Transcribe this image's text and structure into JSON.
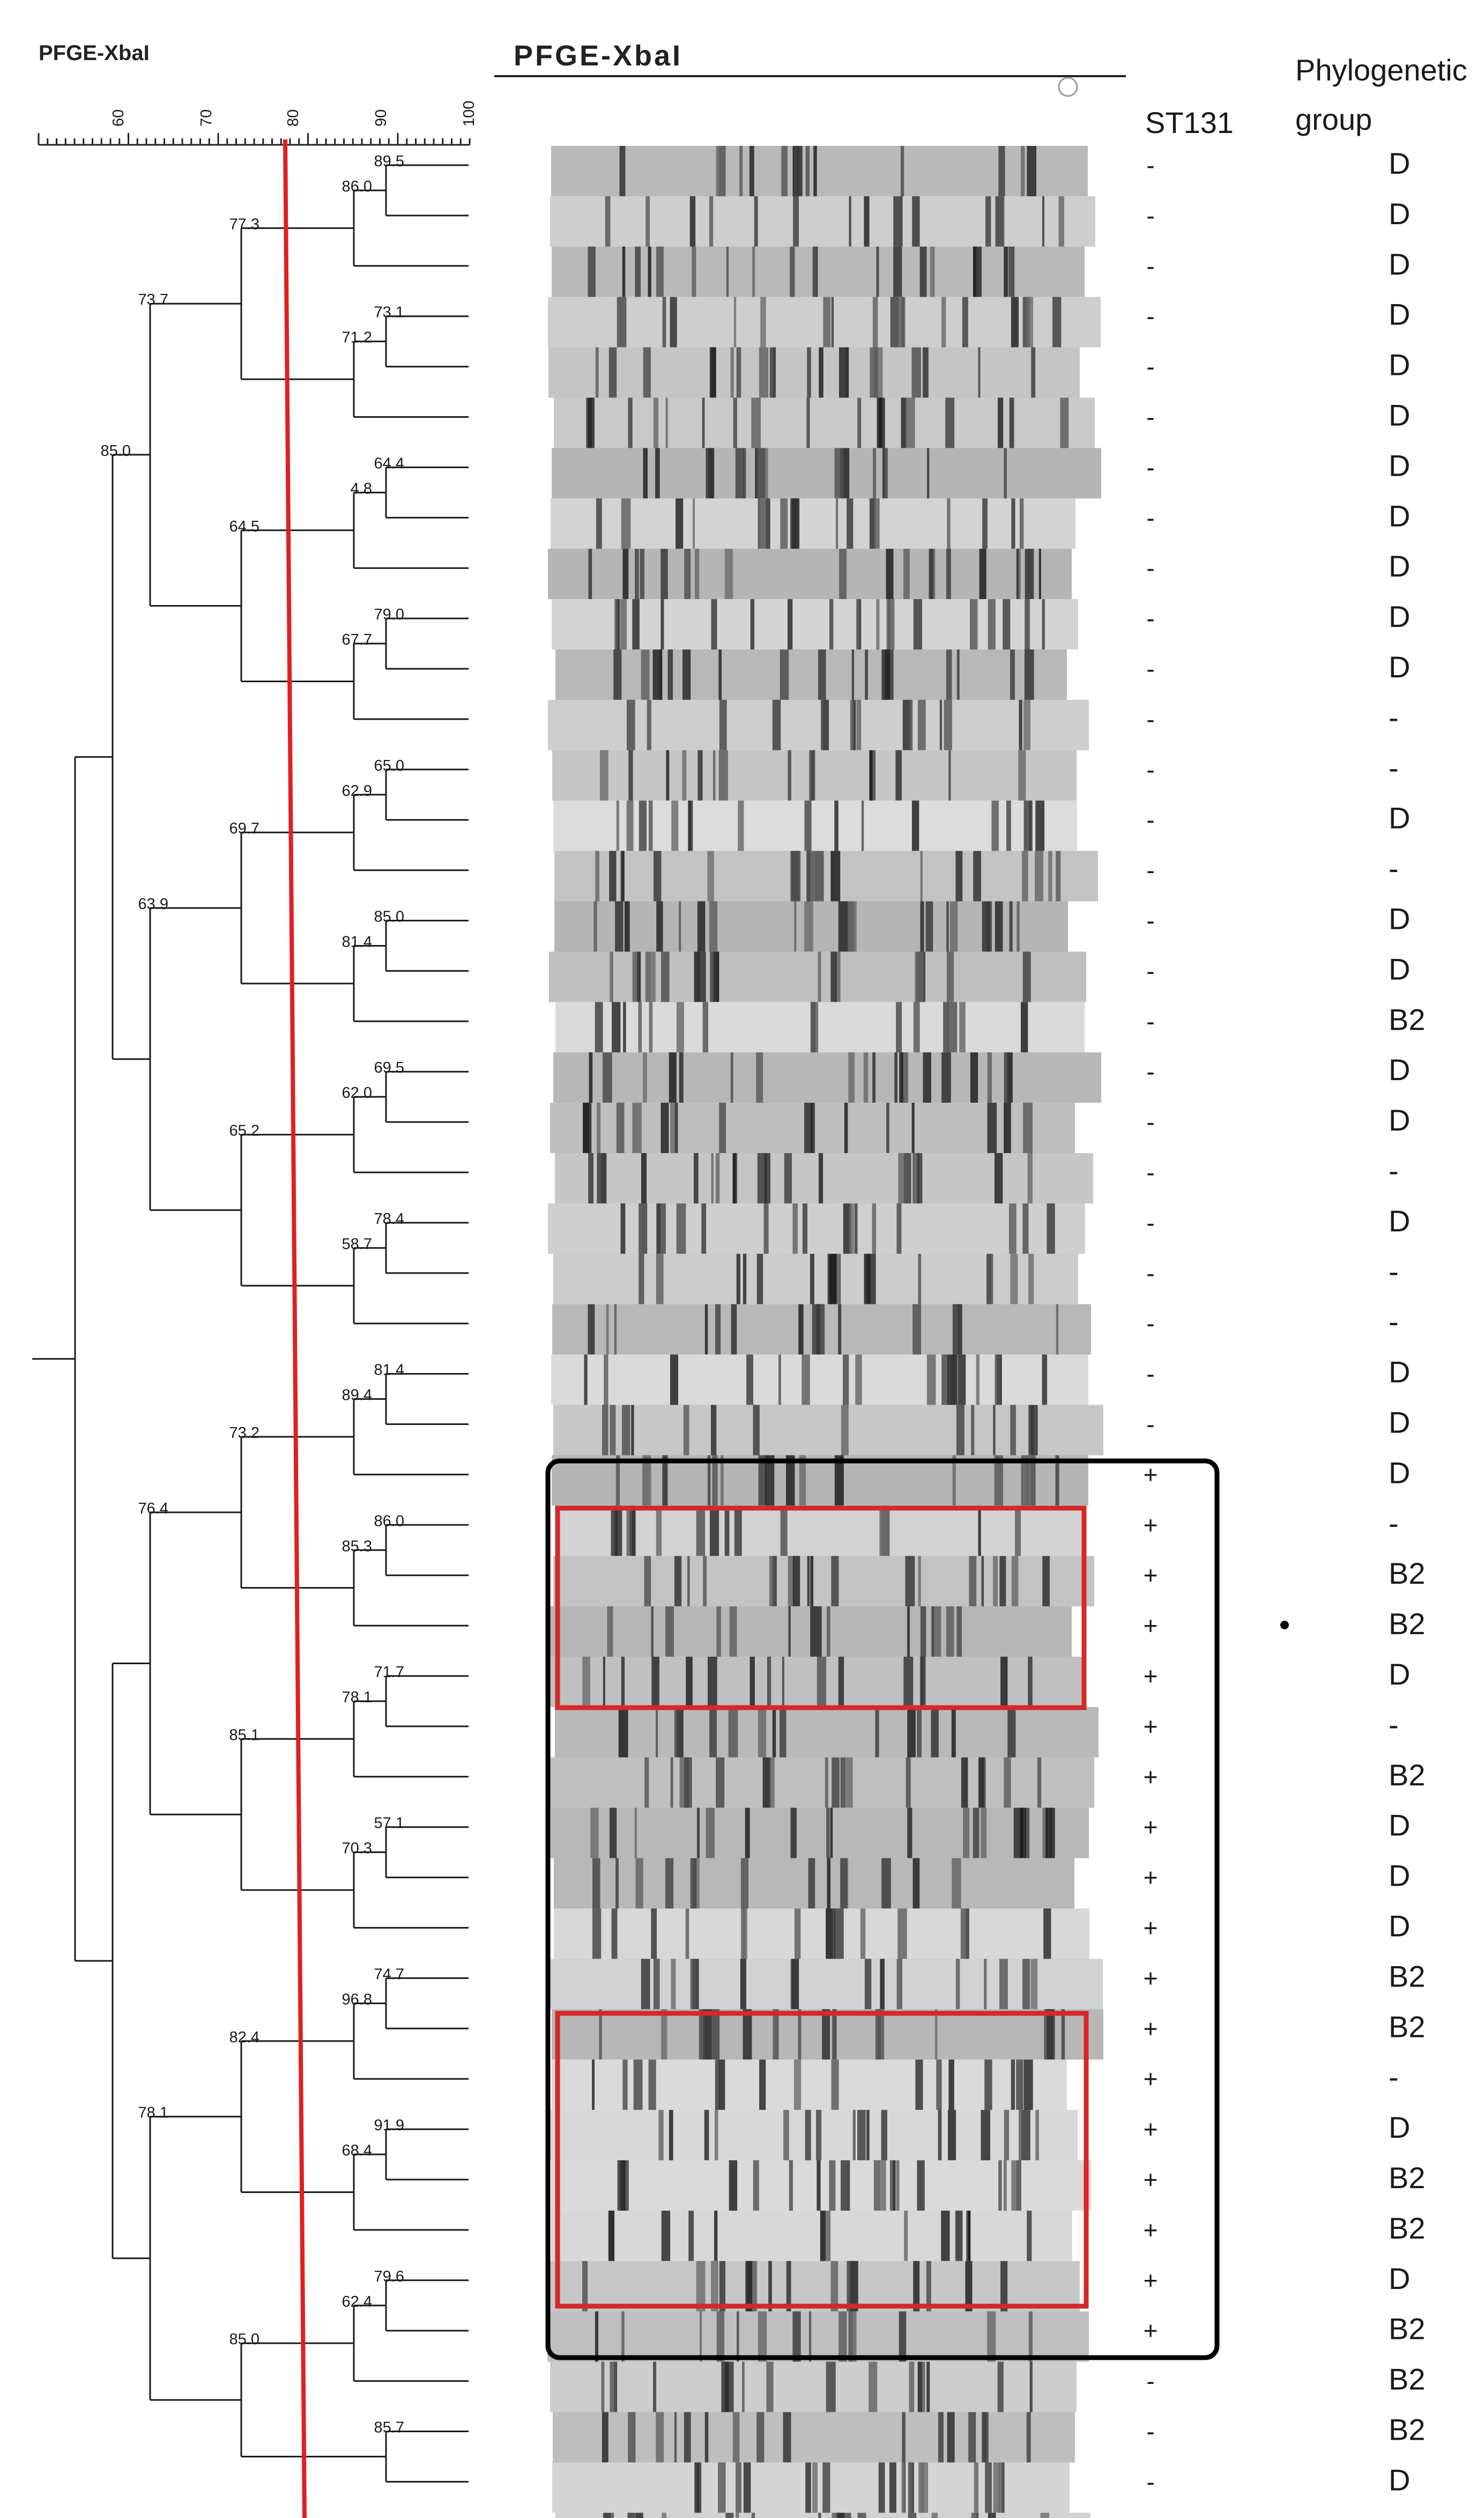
{
  "dendrogram": {
    "title": "PFGE-XbaI",
    "scale_ticks": [
      "60",
      "70",
      "80",
      "90",
      "100"
    ],
    "cutoff_similarity": 80,
    "node_labels": [
      "89.5",
      "86.0",
      "73.1",
      "71.2",
      "77.3",
      "64.4",
      "4.8",
      "79.0",
      "67.7",
      "64.5",
      "73.7",
      "65.0",
      "62.9",
      "85.0",
      "81.4",
      "69.7",
      "69.5",
      "62.0",
      "78.4",
      "58.7",
      "65.2",
      "63.9",
      "85.0",
      "81.4",
      "89.4",
      "86.0",
      "85.3",
      "73.2",
      "71.7",
      "78.1",
      "57.1",
      "70.3",
      "85.1",
      "76.4",
      "74.7",
      "96.8",
      "91.9",
      "68.4",
      "82.4",
      "79.6",
      "62.4",
      "85.7",
      "85.0",
      "78.1"
    ]
  },
  "gel": {
    "title": "PFGE-XbaI",
    "lane_count": 48
  },
  "columns": {
    "st131_header": "ST131",
    "phylo_header_line1": "Phylogenetic",
    "phylo_header_line2": "group"
  },
  "isolates": [
    {
      "st131": "-",
      "group": "D"
    },
    {
      "st131": "-",
      "group": "D"
    },
    {
      "st131": "-",
      "group": "D"
    },
    {
      "st131": "-",
      "group": "D"
    },
    {
      "st131": "-",
      "group": "D"
    },
    {
      "st131": "-",
      "group": "D"
    },
    {
      "st131": "-",
      "group": "D"
    },
    {
      "st131": "-",
      "group": "D"
    },
    {
      "st131": "-",
      "group": "D"
    },
    {
      "st131": "-",
      "group": "D"
    },
    {
      "st131": "-",
      "group": "D"
    },
    {
      "st131": "-",
      "group": "-"
    },
    {
      "st131": "-",
      "group": "-"
    },
    {
      "st131": "-",
      "group": "D"
    },
    {
      "st131": "-",
      "group": "-"
    },
    {
      "st131": "-",
      "group": "D"
    },
    {
      "st131": "-",
      "group": "D"
    },
    {
      "st131": "-",
      "group": "B2"
    },
    {
      "st131": "-",
      "group": "D"
    },
    {
      "st131": "-",
      "group": "D"
    },
    {
      "st131": "-",
      "group": "-"
    },
    {
      "st131": "-",
      "group": "D"
    },
    {
      "st131": "-",
      "group": "-"
    },
    {
      "st131": "-",
      "group": "-"
    },
    {
      "st131": "-",
      "group": "D"
    },
    {
      "st131": "-",
      "group": "D"
    },
    {
      "st131": "+",
      "group": "D"
    },
    {
      "st131": "+",
      "group": "-"
    },
    {
      "st131": "+",
      "group": "B2"
    },
    {
      "st131": "+",
      "group": "B2"
    },
    {
      "st131": "+",
      "group": "D"
    },
    {
      "st131": "+",
      "group": "-"
    },
    {
      "st131": "+",
      "group": "B2"
    },
    {
      "st131": "+",
      "group": "D"
    },
    {
      "st131": "+",
      "group": "D"
    },
    {
      "st131": "+",
      "group": "D"
    },
    {
      "st131": "+",
      "group": "B2"
    },
    {
      "st131": "+",
      "group": "B2"
    },
    {
      "st131": "+",
      "group": "-"
    },
    {
      "st131": "+",
      "group": "D"
    },
    {
      "st131": "+",
      "group": "B2"
    },
    {
      "st131": "+",
      "group": "B2"
    },
    {
      "st131": "+",
      "group": "D"
    },
    {
      "st131": "+",
      "group": "B2"
    },
    {
      "st131": "-",
      "group": "B2"
    },
    {
      "st131": "-",
      "group": "B2"
    },
    {
      "st131": "-",
      "group": "D"
    }
  ],
  "colors": {
    "cutoff_line": "#e02020",
    "highlight_box": "#d62828",
    "st131_box": "#000000"
  }
}
